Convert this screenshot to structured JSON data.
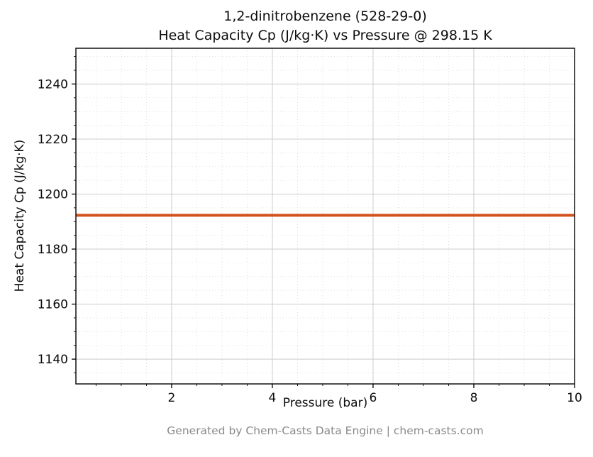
{
  "title_line1": "1,2-dinitrobenzene (528-29-0)",
  "title_line2": "Heat Capacity Cp (J/kg·K) vs Pressure @ 298.15 K",
  "footer": "Generated by Chem-Casts Data Engine | chem-casts.com",
  "chart_data": {
    "type": "line",
    "title": "1,2-dinitrobenzene (528-29-0)\nHeat Capacity Cp (J/kg·K) vs Pressure @ 298.15 K",
    "xlabel": "Pressure (bar)",
    "ylabel": "Heat Capacity Cp (J/kg·K)",
    "x": [
      0.1,
      10.0
    ],
    "series": [
      {
        "name": "Cp",
        "values": [
          1192.3,
          1192.3
        ]
      }
    ],
    "xlim": [
      0.1,
      10.0
    ],
    "ylim": [
      1131,
      1253
    ],
    "xticks": [
      2,
      4,
      6,
      8,
      10
    ],
    "yticks": [
      1140,
      1160,
      1180,
      1200,
      1220,
      1240
    ],
    "x_minor_step": 0.5,
    "y_minor_step": 5,
    "grid": true,
    "legend_position": "none",
    "line_color": "#d2521e",
    "line_width": 4,
    "axis_color": "#000000",
    "major_grid_color": "#cccccc",
    "minor_grid_color": "#d9d9d9",
    "tick_label_color": "#0d0d0d"
  }
}
